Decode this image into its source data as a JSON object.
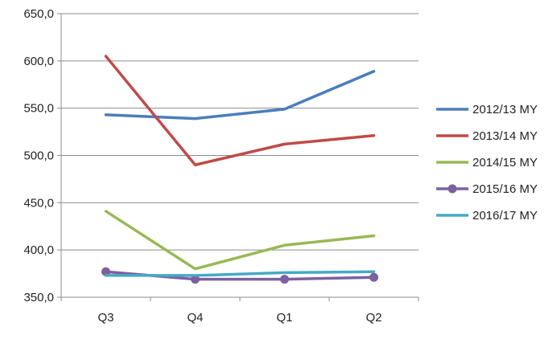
{
  "chart_data": {
    "type": "line",
    "categories": [
      "Q3",
      "Q4",
      "Q1",
      "Q2"
    ],
    "ylim": [
      350,
      650
    ],
    "yticks": [
      350,
      400,
      450,
      500,
      550,
      600,
      650
    ],
    "ytick_labels": [
      "350,0",
      "400,0",
      "450,0",
      "500,0",
      "550,0",
      "600,0",
      "650,0"
    ],
    "grid": "horizontal",
    "legend_position": "right",
    "series": [
      {
        "name": "2012/13 MY",
        "color": "#4a7ebb",
        "marker": "none",
        "values": [
          543,
          539,
          549,
          589
        ]
      },
      {
        "name": "2013/14 MY",
        "color": "#be4b48",
        "marker": "none",
        "values": [
          605,
          490,
          512,
          521
        ]
      },
      {
        "name": "2014/15 MY",
        "color": "#98b954",
        "marker": "none",
        "values": [
          441,
          380,
          405,
          415
        ]
      },
      {
        "name": "2015/16 MY",
        "color": "#7d60a0",
        "marker": "circle",
        "values": [
          377,
          369,
          369,
          371
        ]
      },
      {
        "name": "2016/17 MY",
        "color": "#46aac5",
        "marker": "none",
        "values": [
          373,
          373,
          376,
          377
        ]
      }
    ]
  }
}
